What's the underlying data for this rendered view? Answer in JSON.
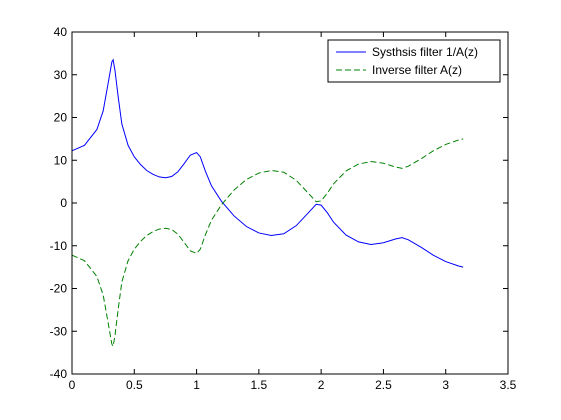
{
  "chart_data": {
    "type": "line",
    "xlim": [
      0,
      3.5
    ],
    "ylim": [
      -40,
      40
    ],
    "xticks": [
      "0",
      "0.5",
      "1",
      "1.5",
      "2",
      "2.5",
      "3",
      "3.5"
    ],
    "yticks": [
      "-40",
      "-30",
      "-20",
      "-10",
      "0",
      "10",
      "20",
      "30",
      "40"
    ],
    "grid": false,
    "legend_position": "top-right",
    "series": [
      {
        "name": "Systhsis filter 1/A(z)",
        "color": "#0000ff",
        "style": "solid",
        "x": [
          0,
          0.1,
          0.2,
          0.25,
          0.29,
          0.32,
          0.33,
          0.345,
          0.37,
          0.4,
          0.45,
          0.5,
          0.55,
          0.6,
          0.65,
          0.7,
          0.75,
          0.8,
          0.85,
          0.9,
          0.95,
          1.0,
          1.03,
          1.07,
          1.12,
          1.2,
          1.3,
          1.4,
          1.5,
          1.6,
          1.7,
          1.8,
          1.9,
          1.96,
          2.0,
          2.05,
          2.1,
          2.2,
          2.3,
          2.4,
          2.5,
          2.6,
          2.65,
          2.7,
          2.8,
          2.9,
          3.0,
          3.1,
          3.14
        ],
        "y": [
          12.2,
          13.5,
          17.2,
          21.5,
          28.0,
          33.0,
          33.5,
          31.0,
          25.0,
          18.5,
          13.5,
          10.8,
          9.0,
          7.6,
          6.7,
          6.1,
          5.9,
          6.2,
          7.3,
          9.2,
          11.2,
          11.8,
          10.8,
          7.5,
          4.0,
          0.4,
          -3.0,
          -5.5,
          -7.0,
          -7.6,
          -7.2,
          -5.3,
          -2.2,
          -0.3,
          -0.5,
          -2.3,
          -4.5,
          -7.5,
          -9.1,
          -9.7,
          -9.3,
          -8.4,
          -8.1,
          -8.6,
          -10.3,
          -12.2,
          -13.7,
          -14.7,
          -15.0
        ]
      },
      {
        "name": "Inverse filter A(z)",
        "color": "#008000",
        "style": "dashed",
        "x": [
          0,
          0.1,
          0.2,
          0.25,
          0.29,
          0.32,
          0.33,
          0.345,
          0.37,
          0.4,
          0.45,
          0.5,
          0.55,
          0.6,
          0.65,
          0.7,
          0.75,
          0.8,
          0.85,
          0.9,
          0.95,
          1.0,
          1.03,
          1.07,
          1.12,
          1.2,
          1.3,
          1.4,
          1.5,
          1.6,
          1.7,
          1.8,
          1.9,
          1.96,
          2.0,
          2.05,
          2.1,
          2.2,
          2.3,
          2.4,
          2.5,
          2.6,
          2.65,
          2.7,
          2.8,
          2.9,
          3.0,
          3.1,
          3.14
        ],
        "y": [
          -12.2,
          -13.5,
          -17.2,
          -21.5,
          -28.0,
          -33.0,
          -33.5,
          -31.0,
          -25.0,
          -18.5,
          -13.5,
          -10.8,
          -9.0,
          -7.6,
          -6.7,
          -6.1,
          -5.9,
          -6.2,
          -7.3,
          -9.2,
          -11.2,
          -11.8,
          -10.8,
          -7.5,
          -4.0,
          -0.4,
          3.0,
          5.5,
          7.0,
          7.6,
          7.2,
          5.3,
          2.2,
          0.3,
          0.5,
          2.3,
          4.5,
          7.5,
          9.1,
          9.7,
          9.3,
          8.4,
          8.1,
          8.6,
          10.3,
          12.2,
          13.7,
          14.7,
          15.0
        ]
      }
    ]
  }
}
